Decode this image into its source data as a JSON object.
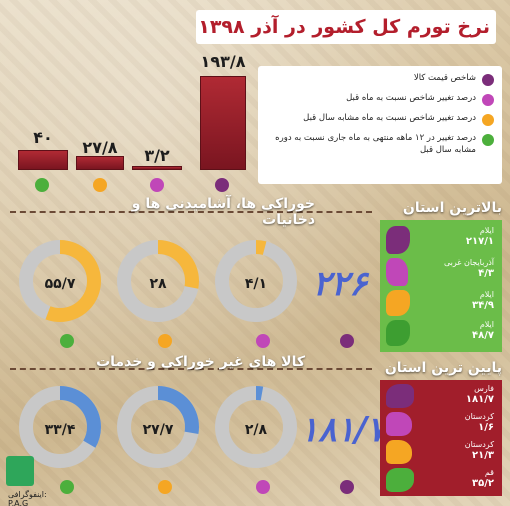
{
  "title": "نرخ تورم کل کشور در آذر ۱۳۹۸",
  "colors": {
    "purple": "#7b2d7a",
    "magenta": "#c047b8",
    "orange": "#f5a623",
    "green": "#4caf3c",
    "donut_orange": "#f6b73c",
    "donut_blue": "#5b8fd6",
    "donut_track": "#c8c8c8",
    "panel_green": "#6bbd49",
    "panel_red": "#a11e2b"
  },
  "legend": [
    {
      "color": "purple",
      "text": "شاخص قیمت کالا"
    },
    {
      "color": "magenta",
      "text": "درصد تغییر شاخص نسبت به ماه قبل"
    },
    {
      "color": "orange",
      "text": "درصد تغییر شاخص نسبت به ماه مشابه سال قبل"
    },
    {
      "color": "green",
      "text": "درصد تغییر در ۱۲ ماهه منتهی به ماه جاری نسبت به دوره مشابه سال قبل"
    }
  ],
  "bars": [
    {
      "value": 40,
      "label": "۴۰",
      "color": "green"
    },
    {
      "value": 27.8,
      "label": "۲۷/۸",
      "color": "orange"
    },
    {
      "value": 3.2,
      "label": "۳/۲",
      "color": "magenta"
    },
    {
      "value": 193.8,
      "label": "۱۹۳/۸",
      "color": "purple"
    }
  ],
  "food": {
    "title": "خوراکی ها، آشامیدنی ها و دخانیات",
    "index": "۲۲۶",
    "donuts": [
      {
        "label": "۵۵/۷",
        "percent": 55.7,
        "color": "donut_orange"
      },
      {
        "label": "۲۸",
        "percent": 28,
        "color": "donut_orange"
      },
      {
        "label": "۴/۱",
        "percent": 4.1,
        "color": "donut_orange"
      }
    ]
  },
  "nonfood": {
    "title": "کالا های غیر خوراکی و خدمات",
    "index": "۱۸۱/۷",
    "donuts": [
      {
        "label": "۳۳/۴",
        "percent": 33.4,
        "color": "donut_blue"
      },
      {
        "label": "۲۷/۷",
        "percent": 27.7,
        "color": "donut_blue"
      },
      {
        "label": "۲/۸",
        "percent": 2.8,
        "color": "donut_blue"
      }
    ]
  },
  "highest": {
    "title": "بالاترین استان",
    "items": [
      {
        "name": "ایلام",
        "value": "۲۱۷/۱",
        "color": "purple"
      },
      {
        "name": "آذربایجان غربی",
        "value": "۴/۳",
        "color": "magenta"
      },
      {
        "name": "ایلام",
        "value": "۳۴/۹",
        "color": "orange"
      },
      {
        "name": "ایلام",
        "value": "۴۸/۷",
        "color": "green"
      }
    ]
  },
  "lowest": {
    "title": "پایین ترین استان",
    "items": [
      {
        "name": "فارس",
        "value": "۱۸۱/۷",
        "color": "purple"
      },
      {
        "name": "کردستان",
        "value": "۱/۶",
        "color": "magenta"
      },
      {
        "name": "کردستان",
        "value": "۲۱/۳",
        "color": "orange"
      },
      {
        "name": "قم",
        "value": "۳۵/۲",
        "color": "green"
      }
    ]
  },
  "logo": {
    "text": "اینفوگرافی: P.A.G"
  }
}
